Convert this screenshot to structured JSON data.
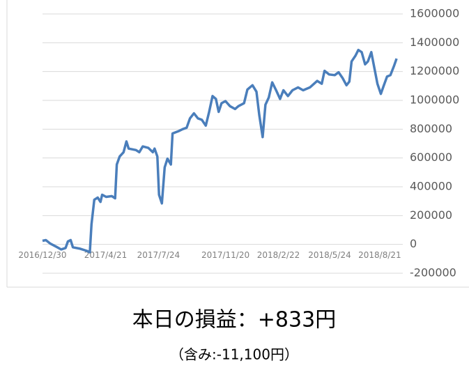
{
  "chart_data": {
    "type": "line",
    "title": "本日の損益：+833円",
    "subtitle": "（含み:-11,100円）",
    "x": [
      "2016/12/30",
      "2017/1/5",
      "2017/1/13",
      "2017/1/23",
      "2017/2/1",
      "2017/2/9",
      "2017/2/13",
      "2017/2/18",
      "2017/2/22",
      "2017/3/7",
      "2017/3/19",
      "2017/3/24",
      "2017/3/27",
      "2017/4/1",
      "2017/4/7",
      "2017/4/12",
      "2017/4/15",
      "2017/4/22",
      "2017/5/2",
      "2017/5/8",
      "2017/5/11",
      "2017/5/16",
      "2017/5/23",
      "2017/5/28",
      "2017/6/1",
      "2017/6/14",
      "2017/6/20",
      "2017/6/26",
      "2017/7/6",
      "2017/7/14",
      "2017/7/17",
      "2017/7/22",
      "2017/7/25",
      "2017/7/30",
      "2017/8/4",
      "2017/8/9",
      "2017/8/15",
      "2017/8/18",
      "2017/8/28",
      "2017/9/5",
      "2017/9/12",
      "2017/9/18",
      "2017/9/25",
      "2017/10/2",
      "2017/10/9",
      "2017/10/16",
      "2017/10/22",
      "2017/10/28",
      "2017/11/3",
      "2017/11/8",
      "2017/11/13",
      "2017/11/20",
      "2017/11/28",
      "2017/12/7",
      "2017/12/13",
      "2017/12/23",
      "2017/12/29",
      "2018/1/7",
      "2018/1/14",
      "2018/1/19",
      "2018/1/25",
      "2018/1/30",
      "2018/2/5",
      "2018/2/11",
      "2018/2/18",
      "2018/2/25",
      "2018/3/3",
      "2018/3/11",
      "2018/3/19",
      "2018/3/29",
      "2018/4/7",
      "2018/4/19",
      "2018/5/2",
      "2018/5/10",
      "2018/5/15",
      "2018/5/23",
      "2018/6/2",
      "2018/6/9",
      "2018/6/16",
      "2018/6/23",
      "2018/6/28",
      "2018/7/2",
      "2018/7/9",
      "2018/7/14",
      "2018/7/20",
      "2018/7/26",
      "2018/7/31",
      "2018/8/6",
      "2018/8/12",
      "2018/8/17",
      "2018/8/23",
      "2018/8/28",
      "2018/9/3",
      "2018/9/9",
      "2018/9/15",
      "2018/9/20"
    ],
    "values": [
      25000,
      30000,
      5000,
      -15000,
      -35000,
      -25000,
      20000,
      30000,
      -20000,
      -30000,
      -45000,
      -55000,
      140000,
      310000,
      325000,
      295000,
      345000,
      330000,
      335000,
      320000,
      555000,
      610000,
      640000,
      715000,
      665000,
      655000,
      640000,
      680000,
      670000,
      640000,
      665000,
      610000,
      345000,
      285000,
      535000,
      595000,
      555000,
      770000,
      785000,
      800000,
      810000,
      875000,
      910000,
      875000,
      865000,
      825000,
      920000,
      1030000,
      1010000,
      920000,
      980000,
      995000,
      960000,
      940000,
      960000,
      980000,
      1075000,
      1105000,
      1060000,
      900000,
      745000,
      970000,
      1020000,
      1125000,
      1070000,
      1010000,
      1070000,
      1030000,
      1070000,
      1090000,
      1070000,
      1090000,
      1135000,
      1115000,
      1205000,
      1180000,
      1175000,
      1195000,
      1155000,
      1105000,
      1130000,
      1270000,
      1310000,
      1350000,
      1335000,
      1250000,
      1270000,
      1335000,
      1215000,
      1115000,
      1045000,
      1100000,
      1165000,
      1175000,
      1235000,
      1290000
    ],
    "color": "#4a7ebb",
    "xlim": [
      "2016/12/30",
      "2018/10/1"
    ],
    "xticks": [
      "2016/12/30",
      "2017/4/21",
      "2017/7/24",
      "2017/11/20",
      "2018/2/22",
      "2018/5/24",
      "2018/8/21"
    ],
    "ylim": [
      -200000,
      1600000
    ],
    "yticks": [
      -200000,
      0,
      200000,
      400000,
      600000,
      800000,
      1000000,
      1200000,
      1400000,
      1600000
    ],
    "grid": true
  }
}
